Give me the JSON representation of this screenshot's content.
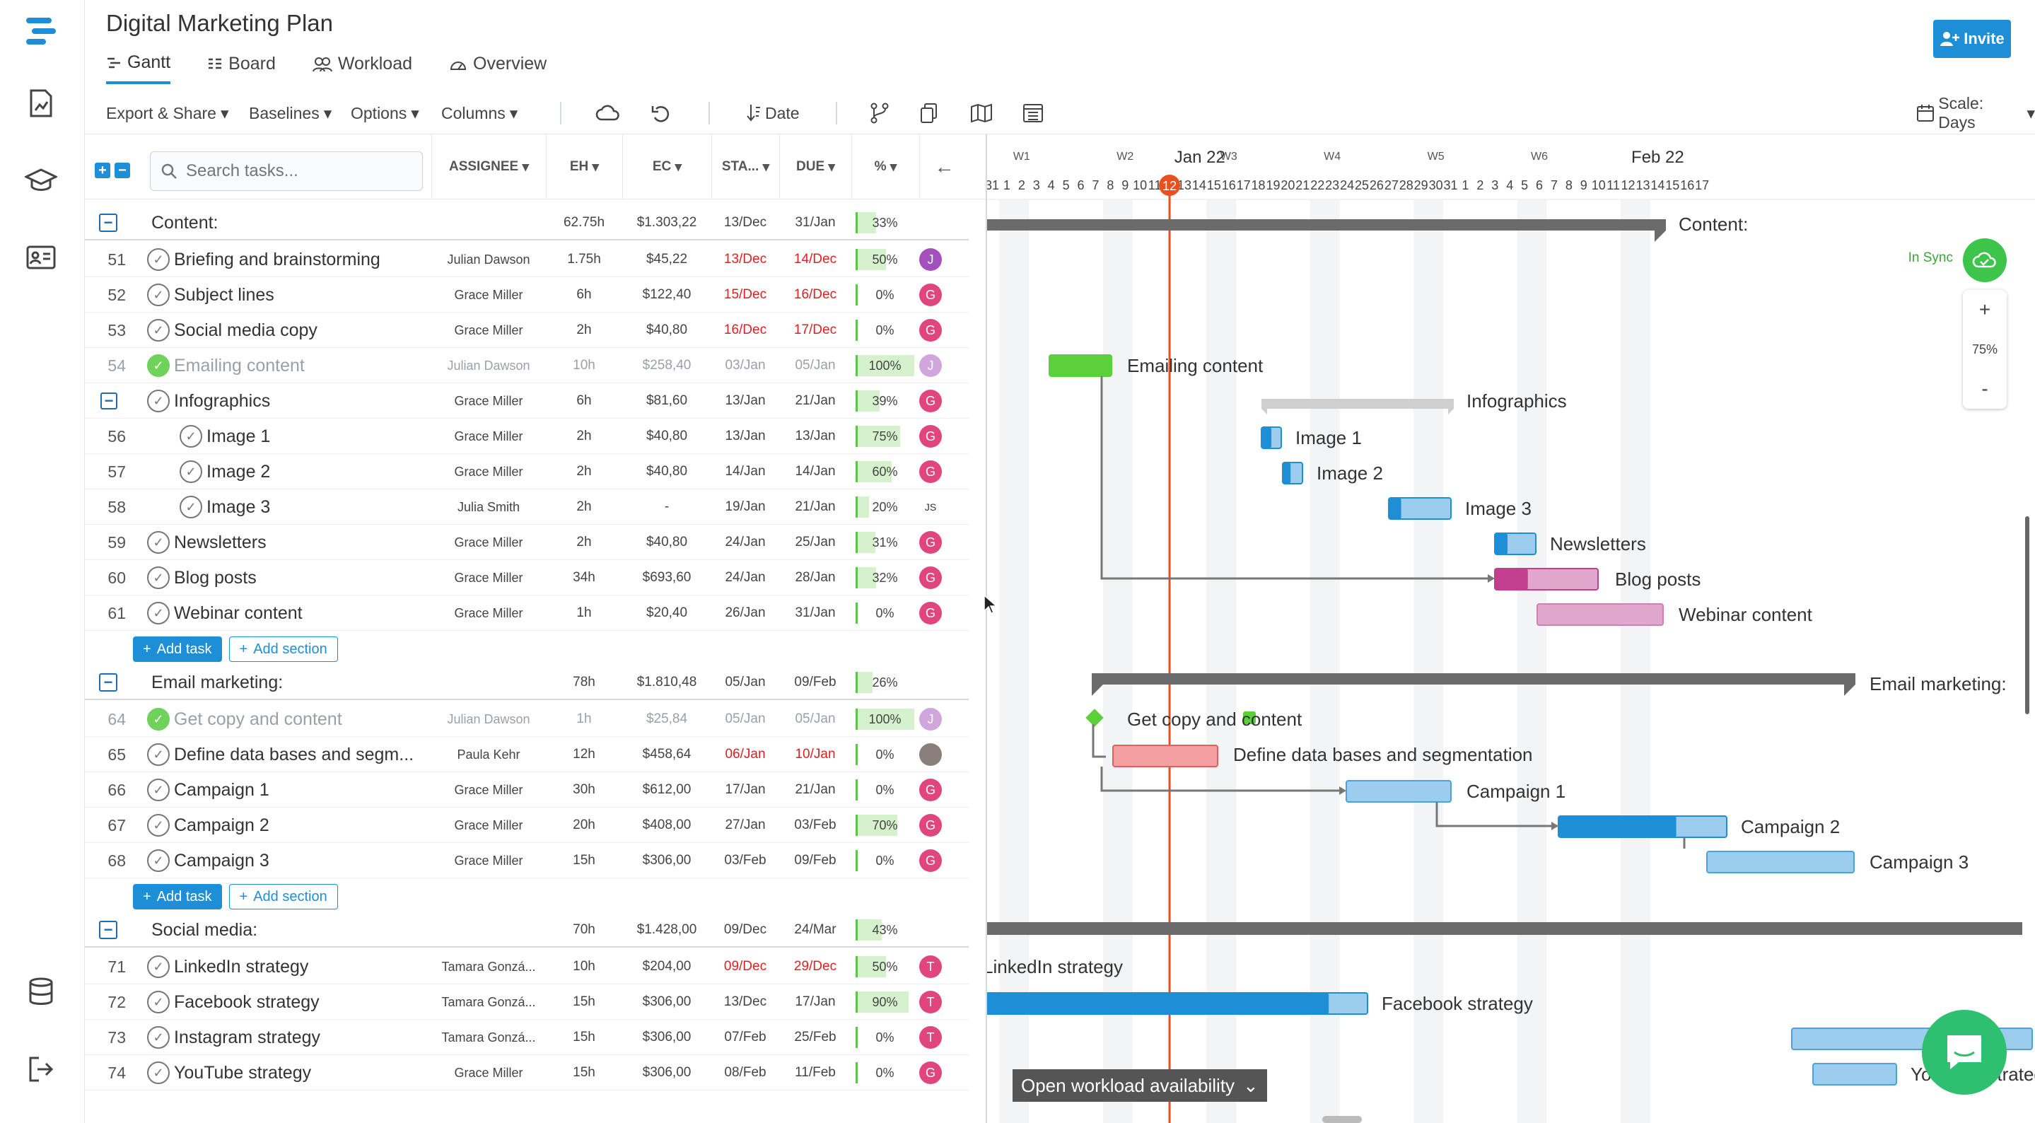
{
  "title": "Digital Marketing Plan",
  "tabs": [
    {
      "label": "Gantt"
    },
    {
      "label": "Board"
    },
    {
      "label": "Workload"
    },
    {
      "label": "Overview"
    }
  ],
  "toolbar": {
    "export": "Export & Share",
    "baselines": "Baselines",
    "options": "Options",
    "columns": "Columns",
    "date": "Date",
    "scale": "Scale: Days"
  },
  "invite": "Invite",
  "search": {
    "placeholder": "Search tasks..."
  },
  "columns": {
    "assignee": "ASSIGNEE",
    "eh": "EH",
    "ec": "EC",
    "sta": "STA...",
    "due": "DUE",
    "pct": "%"
  },
  "buttons": {
    "add_task": "Add task",
    "add_section": "Add section"
  },
  "sections": [
    {
      "name": "Content:",
      "eh": "62.75h",
      "ec": "$1.303,22",
      "start": "13/Dec",
      "due": "31/Jan",
      "pct": "33%",
      "pct_value": 33
    },
    {
      "name": "Email marketing:",
      "eh": "78h",
      "ec": "$1.810,48",
      "start": "05/Jan",
      "due": "09/Feb",
      "pct": "26%",
      "pct_value": 26
    },
    {
      "name": "Social media:",
      "eh": "70h",
      "ec": "$1.428,00",
      "start": "09/Dec",
      "due": "24/Mar",
      "pct": "43%",
      "pct_value": 43
    }
  ],
  "rows": [
    {
      "num": "51",
      "name": "Briefing and brainstorming",
      "assignee": "Julian Dawson",
      "eh": "1.75h",
      "ec": "$45,22",
      "start": "13/Dec",
      "due": "14/Dec",
      "pct": "50%",
      "pct_value": 50,
      "initial": "J"
    },
    {
      "num": "52",
      "name": "Subject lines",
      "assignee": "Grace Miller",
      "eh": "6h",
      "ec": "$122,40",
      "start": "15/Dec",
      "due": "16/Dec",
      "pct": "0%",
      "pct_value": 0,
      "initial": "G"
    },
    {
      "num": "53",
      "name": "Social media copy",
      "assignee": "Grace Miller",
      "eh": "2h",
      "ec": "$40,80",
      "start": "16/Dec",
      "due": "17/Dec",
      "pct": "0%",
      "pct_value": 0,
      "initial": "G"
    },
    {
      "num": "54",
      "name": "Emailing content",
      "assignee": "Julian Dawson",
      "eh": "10h",
      "ec": "$258,40",
      "start": "03/Jan",
      "due": "05/Jan",
      "pct": "100%",
      "pct_value": 100,
      "initial": "J"
    },
    {
      "num": "",
      "name": "Infographics",
      "assignee": "Grace Miller",
      "eh": "6h",
      "ec": "$81,60",
      "start": "13/Jan",
      "due": "21/Jan",
      "pct": "39%",
      "pct_value": 39,
      "initial": "G"
    },
    {
      "num": "56",
      "name": "Image 1",
      "assignee": "Grace Miller",
      "eh": "2h",
      "ec": "$40,80",
      "start": "13/Jan",
      "due": "13/Jan",
      "pct": "75%",
      "pct_value": 75,
      "initial": "G"
    },
    {
      "num": "57",
      "name": "Image 2",
      "assignee": "Grace Miller",
      "eh": "2h",
      "ec": "$40,80",
      "start": "14/Jan",
      "due": "14/Jan",
      "pct": "60%",
      "pct_value": 60,
      "initial": "G"
    },
    {
      "num": "58",
      "name": "Image 3",
      "assignee": "Julia Smith",
      "eh": "2h",
      "ec": "-",
      "start": "19/Jan",
      "due": "21/Jan",
      "pct": "20%",
      "pct_value": 20,
      "initial": "JS"
    },
    {
      "num": "59",
      "name": "Newsletters",
      "assignee": "Grace Miller",
      "eh": "2h",
      "ec": "$40,80",
      "start": "24/Jan",
      "due": "25/Jan",
      "pct": "31%",
      "pct_value": 31,
      "initial": "G"
    },
    {
      "num": "60",
      "name": "Blog posts",
      "assignee": "Grace Miller",
      "eh": "34h",
      "ec": "$693,60",
      "start": "24/Jan",
      "due": "28/Jan",
      "pct": "32%",
      "pct_value": 32,
      "initial": "G"
    },
    {
      "num": "61",
      "name": "Webinar content",
      "assignee": "Grace Miller",
      "eh": "1h",
      "ec": "$20,40",
      "start": "26/Jan",
      "due": "31/Jan",
      "pct": "0%",
      "pct_value": 0,
      "initial": "G"
    },
    {
      "num": "64",
      "name": "Get copy and content",
      "assignee": "Julian Dawson",
      "eh": "1h",
      "ec": "$25,84",
      "start": "05/Jan",
      "due": "05/Jan",
      "pct": "100%",
      "pct_value": 100,
      "initial": "J"
    },
    {
      "num": "65",
      "name": "Define data bases and segm...",
      "assignee": "Paula Kehr",
      "eh": "12h",
      "ec": "$458,64",
      "start": "06/Jan",
      "due": "10/Jan",
      "pct": "0%",
      "pct_value": 0,
      "initial": ""
    },
    {
      "num": "66",
      "name": "Campaign 1",
      "assignee": "Grace Miller",
      "eh": "30h",
      "ec": "$612,00",
      "start": "17/Jan",
      "due": "21/Jan",
      "pct": "0%",
      "pct_value": 0,
      "initial": "G"
    },
    {
      "num": "67",
      "name": "Campaign 2",
      "assignee": "Grace Miller",
      "eh": "20h",
      "ec": "$408,00",
      "start": "27/Jan",
      "due": "03/Feb",
      "pct": "70%",
      "pct_value": 70,
      "initial": "G"
    },
    {
      "num": "68",
      "name": "Campaign 3",
      "assignee": "Grace Miller",
      "eh": "15h",
      "ec": "$306,00",
      "start": "03/Feb",
      "due": "09/Feb",
      "pct": "0%",
      "pct_value": 0,
      "initial": "G"
    },
    {
      "num": "71",
      "name": "LinkedIn strategy",
      "assignee": "Tamara Gonzá...",
      "eh": "10h",
      "ec": "$204,00",
      "start": "09/Dec",
      "due": "29/Dec",
      "pct": "50%",
      "pct_value": 50,
      "initial": "T"
    },
    {
      "num": "72",
      "name": "Facebook strategy",
      "assignee": "Tamara Gonzá...",
      "eh": "15h",
      "ec": "$306,00",
      "start": "13/Dec",
      "due": "17/Jan",
      "pct": "90%",
      "pct_value": 90,
      "initial": "T"
    },
    {
      "num": "73",
      "name": "Instagram strategy",
      "assignee": "Tamara Gonzá...",
      "eh": "15h",
      "ec": "$306,00",
      "start": "07/Feb",
      "due": "25/Feb",
      "pct": "0%",
      "pct_value": 0,
      "initial": "T"
    },
    {
      "num": "74",
      "name": "YouTube strategy",
      "assignee": "Grace Miller",
      "eh": "15h",
      "ec": "$306,00",
      "start": "08/Feb",
      "due": "11/Feb",
      "pct": "0%",
      "pct_value": 0,
      "initial": "G"
    }
  ],
  "timeline": {
    "weeks": [
      "W1",
      "W2",
      "W3",
      "W4",
      "W5",
      "W6"
    ],
    "months": [
      "Jan 22",
      "Feb 22"
    ],
    "days": [
      "31",
      "1",
      "2",
      "3",
      "4",
      "5",
      "6",
      "7",
      "8",
      "9",
      "10",
      "11",
      "12",
      "13",
      "14",
      "15",
      "16",
      "17",
      "18",
      "19",
      "20",
      "21",
      "22",
      "23",
      "24",
      "25",
      "26",
      "27",
      "28",
      "29",
      "30",
      "31",
      "1",
      "2",
      "3",
      "4",
      "5",
      "6",
      "7",
      "8",
      "9",
      "10",
      "11",
      "12",
      "13",
      "14",
      "15",
      "16",
      "17"
    ],
    "today": "12"
  },
  "gantt_labels": {
    "content": "Content:",
    "email": "Email marketing:",
    "emailing": "Emailing content",
    "infographics": "Infographics",
    "image1": "Image 1",
    "image2": "Image 2",
    "image3": "Image 3",
    "newsletters": "Newsletters",
    "blog": "Blog posts",
    "webinar": "Webinar content",
    "getcopy": "Get copy and content",
    "define": "Define data bases and segmentation",
    "campaign1": "Campaign 1",
    "campaign2": "Campaign 2",
    "campaign3": "Campaign 3",
    "linkedin": "LinkedIn strategy",
    "facebook": "Facebook strategy",
    "youtube": "YouTube strategy"
  },
  "sync": "In Sync",
  "zoom": "75%",
  "zoom_in": "+",
  "zoom_out": "-",
  "workload": "Open workload availability",
  "colors": {
    "accent": "#1e8fd7",
    "today": "#e8501f",
    "green": "#5fc24f",
    "pink": "#e0a6cc",
    "red": "#f4a0a0",
    "avatar_pink": "#e0457b",
    "avatar_purple": "#a34fbd"
  }
}
